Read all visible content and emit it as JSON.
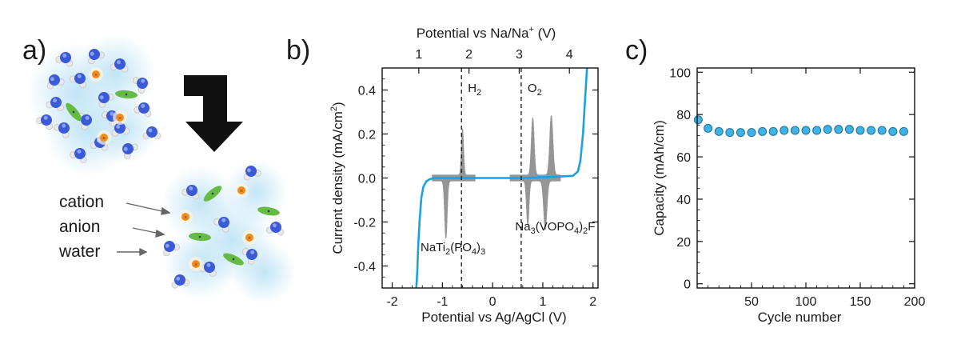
{
  "panels": {
    "a": {
      "label": "a)",
      "legend": [
        {
          "key": "cation",
          "text": "cation"
        },
        {
          "key": "anion",
          "text": "anion"
        },
        {
          "key": "water",
          "text": "water"
        }
      ]
    },
    "b": {
      "label": "b)"
    },
    "c": {
      "label": "c)"
    }
  },
  "colors": {
    "line": "#1ba1e2",
    "cv_fill": "#b8b8b8",
    "cv_line": "#8a8a8a",
    "marker_fill": "#3fb2e6",
    "marker_edge": "#1f6f9a",
    "water_blue": "#3b5bd6",
    "cation_orange": "#f08c1e",
    "anion_green": "#66bb44",
    "solvation_cloud": "#bfe3f5",
    "arrow": "#111111"
  },
  "chart_data": [
    {
      "id": "b",
      "type": "line",
      "xlabel": "Potential vs Ag/AgCl (V)",
      "ylabel_parts": [
        "Current density (mA/cm",
        "2",
        ")"
      ],
      "top_xlabel_parts": [
        "Potential vs Na/Na",
        "+",
        " (V)"
      ],
      "xlim": [
        -2.2,
        2.1
      ],
      "ylim": [
        -0.5,
        0.5
      ],
      "xticks": [
        -2,
        -1,
        0,
        1,
        2
      ],
      "xtick_labels": [
        "-2",
        "-1",
        "0",
        "1",
        "2"
      ],
      "yticks": [
        -0.4,
        -0.2,
        0.0,
        0.2,
        0.4
      ],
      "ytick_labels": [
        "-0.4",
        "-0.2",
        "0.0",
        "0.2",
        "0.4"
      ],
      "top_xtick_positions": [
        -1.47,
        -0.47,
        0.53,
        1.53
      ],
      "top_xtick_labels": [
        "1",
        "2",
        "3",
        "4"
      ],
      "window_curve": {
        "x": [
          -1.52,
          -1.5,
          -1.48,
          -1.45,
          -1.42,
          -1.38,
          -1.32,
          -1.25,
          -1.15,
          -1.0,
          -0.6,
          0.0,
          0.6,
          1.2,
          1.6,
          1.7,
          1.75,
          1.8,
          1.84,
          1.88
        ],
        "y": [
          -0.5,
          -0.42,
          -0.3,
          -0.18,
          -0.09,
          -0.04,
          -0.015,
          -0.005,
          0.0,
          0.0,
          0.0,
          0.0,
          0.0,
          0.005,
          0.01,
          0.03,
          0.08,
          0.2,
          0.35,
          0.5
        ]
      },
      "cv_curves": [
        {
          "label_parts": [
            "NaTi",
            "2",
            "(PO",
            "4",
            ")",
            "3"
          ],
          "x_range": [
            -1.2,
            -0.35
          ],
          "peaks": [
            {
              "x": -0.6,
              "y": 0.21,
              "w": 0.03
            },
            {
              "x": -0.93,
              "y": -0.26,
              "w": 0.035
            }
          ]
        },
        {
          "label_parts": [
            "Na",
            "3",
            "(VOPO",
            "4",
            ")",
            "2",
            "F"
          ],
          "x_range": [
            0.35,
            1.35
          ],
          "peaks": [
            {
              "x": 0.8,
              "y": 0.26,
              "w": 0.04
            },
            {
              "x": 1.17,
              "y": 0.27,
              "w": 0.045
            },
            {
              "x": 0.7,
              "y": -0.2,
              "w": 0.035
            },
            {
              "x": 1.05,
              "y": -0.22,
              "w": 0.045
            }
          ]
        }
      ],
      "limits": [
        {
          "x": -0.62,
          "label_parts": [
            "H",
            "2"
          ]
        },
        {
          "x": 0.57,
          "label_parts": [
            "O",
            "2"
          ]
        }
      ]
    },
    {
      "id": "c",
      "type": "scatter",
      "xlabel": "Cycle number",
      "ylabel": "Capacity (mAh/cm)",
      "xlim": [
        0,
        200
      ],
      "ylim": [
        -2,
        102
      ],
      "xticks": [
        50,
        100,
        150,
        200
      ],
      "xtick_labels": [
        "50",
        "100",
        "150",
        "200"
      ],
      "yticks": [
        0,
        20,
        40,
        60,
        80,
        100
      ],
      "ytick_labels": [
        "0",
        "20",
        "40",
        "60",
        "80",
        "100"
      ],
      "series": [
        {
          "x": [
            1,
            10,
            20,
            30,
            40,
            50,
            60,
            70,
            80,
            90,
            100,
            110,
            120,
            130,
            140,
            150,
            160,
            170,
            180,
            190
          ],
          "y": [
            77.5,
            73.5,
            72,
            71.5,
            71.5,
            71.5,
            72,
            72,
            72.5,
            72.5,
            72.5,
            72.5,
            73,
            73,
            73,
            72.5,
            72.5,
            72.5,
            72,
            72
          ]
        }
      ]
    }
  ]
}
